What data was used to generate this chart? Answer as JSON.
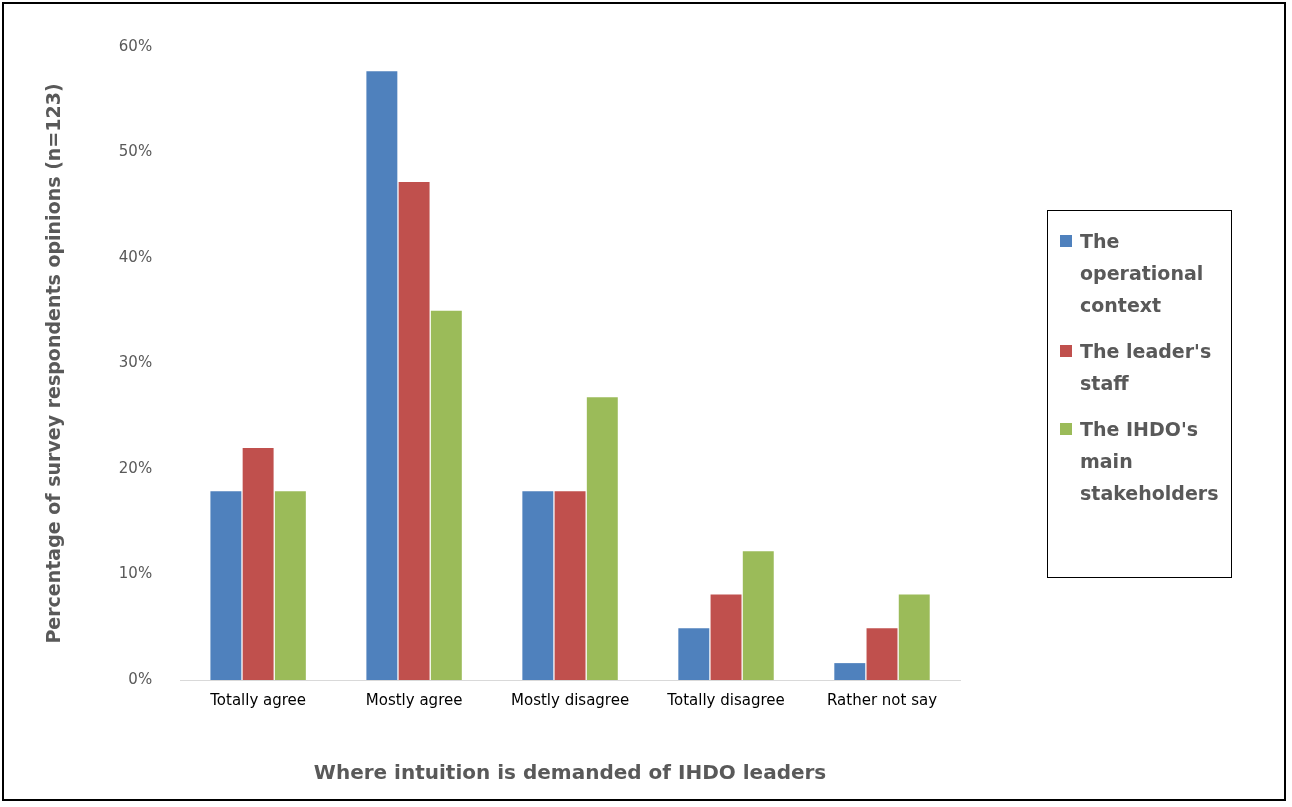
{
  "chart_data": {
    "type": "bar",
    "xlabel": "Where intuition is demanded of IHDO leaders",
    "ylabel": "Percentage of survey respondents opinions (n=123)",
    "categories": [
      "Totally agree",
      "Mostly agree",
      "Mostly disagree",
      "Totally disagree",
      "Rather not say"
    ],
    "series": [
      {
        "name": "The operational context",
        "color": "#4f81bd",
        "values": [
          17.9,
          57.7,
          17.9,
          4.9,
          1.6
        ]
      },
      {
        "name": "The leader's staff",
        "color": "#c0504d",
        "values": [
          22.0,
          47.2,
          17.9,
          8.1,
          4.9
        ]
      },
      {
        "name": "The IHDO's main stakeholders",
        "color": "#9bbb59",
        "values": [
          17.9,
          35.0,
          26.8,
          12.2,
          8.1
        ]
      }
    ],
    "ylim": [
      0,
      60
    ],
    "yticks": [
      {
        "value": 0,
        "label": "0%"
      },
      {
        "value": 10,
        "label": "10%"
      },
      {
        "value": 20,
        "label": "20%"
      },
      {
        "value": 30,
        "label": "30%"
      },
      {
        "value": 40,
        "label": "40%"
      },
      {
        "value": 50,
        "label": "50%"
      },
      {
        "value": 60,
        "label": "60%"
      }
    ],
    "grid": false,
    "legend": "right"
  }
}
